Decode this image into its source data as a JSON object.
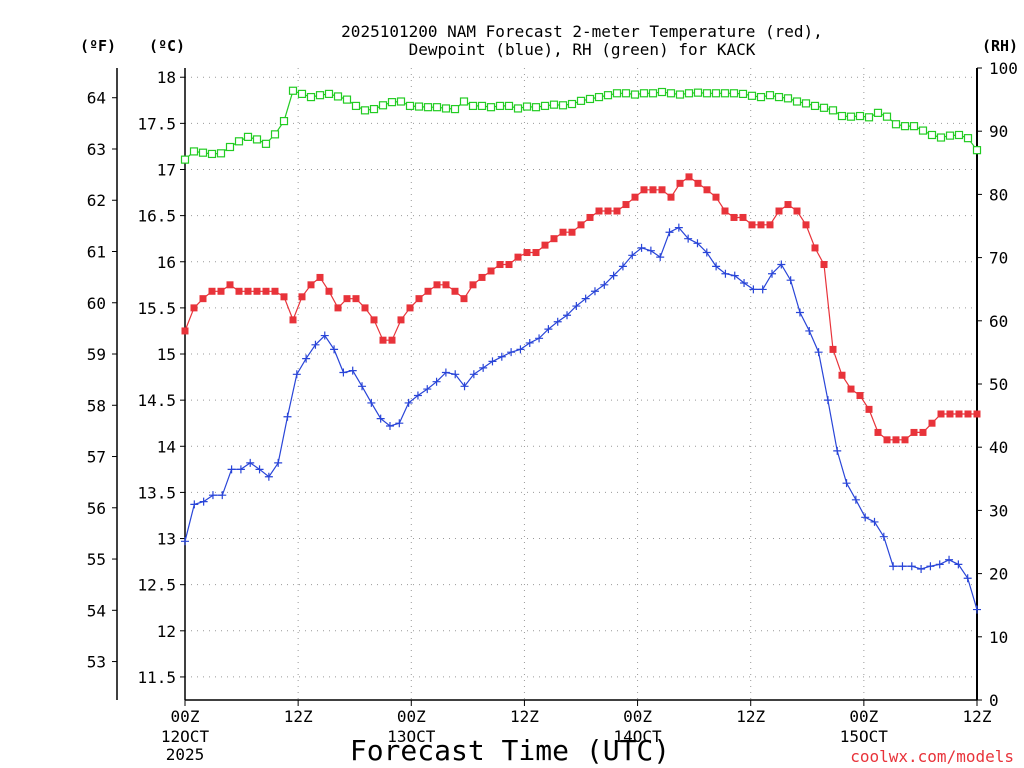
{
  "chart_data": {
    "type": "line",
    "title_line1": "2025101200 NAM Forecast 2-meter Temperature (red),",
    "title_line2": "Dewpoint (blue), RH (green) for KACK",
    "xlabel": "Forecast Time (UTC)",
    "credit": "coolwx.com/models",
    "units": {
      "fahrenheit": "(ºF)",
      "celsius": "(ºC)",
      "rh": "(RH)"
    },
    "xlim": [
      0,
      84
    ],
    "ylim_c": [
      11.25,
      18.1
    ],
    "ylim_rh": [
      0,
      100
    ],
    "celsius_ticks": [
      "11.5",
      "12",
      "12.5",
      "13",
      "13.5",
      "14",
      "14.5",
      "15",
      "15.5",
      "16",
      "16.5",
      "17",
      "17.5",
      "18"
    ],
    "fahrenheit_ticks": [
      "53",
      "54",
      "55",
      "56",
      "57",
      "58",
      "59",
      "60",
      "61",
      "62",
      "63",
      "64"
    ],
    "rh_ticks": [
      "0",
      "10",
      "20",
      "30",
      "40",
      "50",
      "60",
      "70",
      "80",
      "90",
      "100"
    ],
    "x_ticks": [
      {
        "hour": 0,
        "label": "00Z",
        "day": "12OCT",
        "year": "2025"
      },
      {
        "hour": 12,
        "label": "12Z",
        "day": "",
        "year": ""
      },
      {
        "hour": 24,
        "label": "00Z",
        "day": "13OCT",
        "year": ""
      },
      {
        "hour": 36,
        "label": "12Z",
        "day": "",
        "year": ""
      },
      {
        "hour": 48,
        "label": "00Z",
        "day": "14OCT",
        "year": ""
      },
      {
        "hour": 60,
        "label": "12Z",
        "day": "",
        "year": ""
      },
      {
        "hour": 72,
        "label": "00Z",
        "day": "15OCT",
        "year": ""
      },
      {
        "hour": 84,
        "label": "12Z",
        "day": "",
        "year": ""
      }
    ],
    "colors": {
      "temperature": "#e8333a",
      "dewpoint": "#2945d8",
      "rh": "#22cc22",
      "grid": "#999999"
    },
    "series": [
      {
        "name": "Temperature",
        "unit": "C",
        "marker": "filled-square",
        "values": [
          15.25,
          15.5,
          15.6,
          15.68,
          15.68,
          15.75,
          15.68,
          15.68,
          15.68,
          15.68,
          15.68,
          15.62,
          15.37,
          15.62,
          15.75,
          15.83,
          15.68,
          15.5,
          15.6,
          15.6,
          15.5,
          15.37,
          15.15,
          15.15,
          15.37,
          15.5,
          15.6,
          15.68,
          15.75,
          15.75,
          15.68,
          15.6,
          15.75,
          15.83,
          15.9,
          15.97,
          15.97,
          16.05,
          16.1,
          16.1,
          16.18,
          16.25,
          16.32,
          16.32,
          16.4,
          16.48,
          16.55,
          16.55,
          16.55,
          16.62,
          16.7,
          16.78,
          16.78,
          16.78,
          16.7,
          16.85,
          16.92,
          16.85,
          16.78,
          16.7,
          16.55,
          16.48,
          16.48,
          16.4,
          16.4,
          16.4,
          16.55,
          16.62,
          16.55,
          16.4,
          16.15,
          15.97,
          15.05,
          14.77,
          14.62,
          14.55,
          14.4,
          14.15,
          14.07,
          14.07,
          14.07,
          14.15,
          14.15,
          14.25,
          14.35,
          14.35,
          14.35,
          14.35,
          14.35
        ]
      },
      {
        "name": "Dewpoint",
        "unit": "C",
        "marker": "plus",
        "values": [
          12.97,
          13.37,
          13.4,
          13.47,
          13.47,
          13.75,
          13.75,
          13.82,
          13.75,
          13.67,
          13.82,
          14.32,
          14.78,
          14.95,
          15.1,
          15.2,
          15.05,
          14.8,
          14.82,
          14.65,
          14.47,
          14.3,
          14.22,
          14.25,
          14.47,
          14.55,
          14.62,
          14.7,
          14.8,
          14.78,
          14.65,
          14.78,
          14.85,
          14.92,
          14.97,
          15.02,
          15.05,
          15.12,
          15.17,
          15.27,
          15.35,
          15.42,
          15.52,
          15.6,
          15.68,
          15.75,
          15.85,
          15.95,
          16.07,
          16.15,
          16.12,
          16.05,
          16.32,
          16.37,
          16.25,
          16.2,
          16.1,
          15.95,
          15.87,
          15.85,
          15.77,
          15.7,
          15.7,
          15.87,
          15.97,
          15.8,
          15.45,
          15.25,
          15.02,
          14.5,
          13.95,
          13.6,
          13.42,
          13.23,
          13.18,
          13.02,
          12.7,
          12.7,
          12.7,
          12.67,
          12.7,
          12.72,
          12.77,
          12.72,
          12.57,
          12.23
        ]
      },
      {
        "name": "RH",
        "unit": "%",
        "marker": "open-square",
        "values": [
          85.5,
          86.8,
          86.6,
          86.4,
          86.5,
          87.5,
          88.4,
          89.1,
          88.7,
          88,
          89.5,
          91.6,
          96.4,
          95.9,
          95.4,
          95.7,
          95.9,
          95.5,
          95,
          94,
          93.3,
          93.5,
          94.1,
          94.6,
          94.7,
          94,
          93.9,
          93.8,
          93.8,
          93.6,
          93.5,
          94.7,
          94,
          94,
          93.8,
          94,
          94,
          93.6,
          93.9,
          93.8,
          94,
          94.2,
          94.1,
          94.3,
          94.8,
          95.1,
          95.4,
          95.7,
          96,
          96,
          95.8,
          96,
          96,
          96.2,
          96,
          95.8,
          96,
          96.1,
          96,
          96,
          96,
          96,
          95.9,
          95.6,
          95.4,
          95.7,
          95.4,
          95.2,
          94.7,
          94.4,
          94,
          93.7,
          93.3,
          92.4,
          92.3,
          92.4,
          92.2,
          92.9,
          92.3,
          91.1,
          90.8,
          90.8,
          90.1,
          89.4,
          89,
          89.3,
          89.4,
          88.9,
          87
        ]
      }
    ]
  }
}
